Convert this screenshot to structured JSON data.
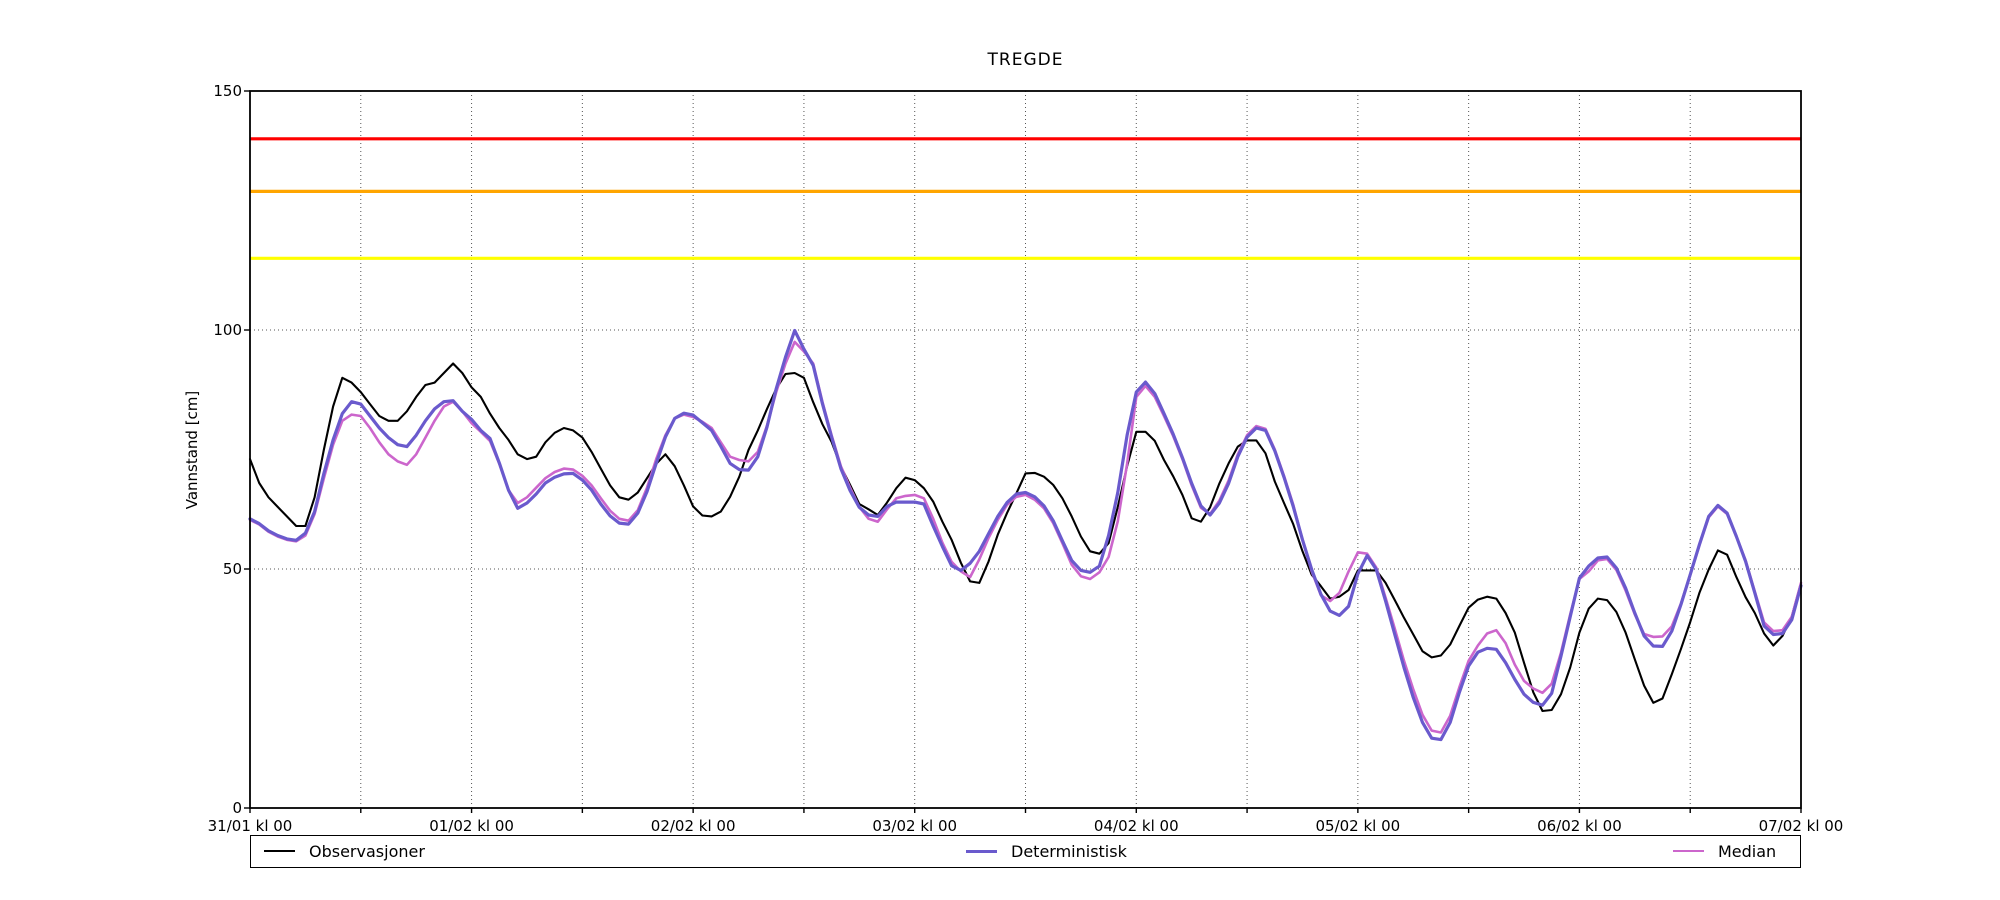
{
  "chart_data": {
    "type": "line",
    "title": "TREGDE",
    "ylabel": "Vannstand [cm]",
    "ylim": [
      0,
      150
    ],
    "yticks": [
      0,
      50,
      100,
      150
    ],
    "x_tick_labels": [
      "31/01 kl 00",
      "01/02 kl 00",
      "02/02 kl 00",
      "03/02 kl 00",
      "04/02 kl 00",
      "05/02 kl 00",
      "06/02 kl 00",
      "07/02 kl 00"
    ],
    "x_tick_hours": [
      0,
      24,
      48,
      72,
      96,
      120,
      144,
      168
    ],
    "x_total_hours": 168,
    "minor_grid_step_hours": 12,
    "grid": "dotted",
    "sample_interval_hours": 1,
    "thresholds": [
      {
        "level": "red",
        "value": 140,
        "color": "#ff0000"
      },
      {
        "level": "orange",
        "value": 129,
        "color": "#ffa500"
      },
      {
        "level": "yellow",
        "value": 115,
        "color": "#ffff00"
      }
    ],
    "series": [
      {
        "name": "Observasjoner",
        "color": "#000000",
        "width": 2.1,
        "values": [
          73,
          68,
          65,
          63,
          61,
          59,
          59,
          65,
          75,
          84,
          90,
          89,
          87,
          84.5,
          82,
          81,
          81,
          83,
          86,
          88.5,
          89,
          91,
          93,
          91,
          88,
          86,
          82.5,
          79.5,
          77,
          74,
          73,
          73.5,
          76.5,
          78.5,
          79.5,
          79,
          77.5,
          74.5,
          71,
          67.5,
          65,
          64.5,
          66,
          69,
          72,
          74,
          71.5,
          67.5,
          63.1,
          61.2,
          61,
          62,
          65.1,
          69.3,
          74.9,
          79,
          83.5,
          87.7,
          90.8,
          91,
          90,
          84.9,
          80.3,
          76.6,
          71.4,
          67.6,
          63.6,
          62.5,
          61.3,
          63.9,
          66.9,
          69.1,
          68.6,
          66.9,
          64.1,
          59.9,
          56.1,
          51.3,
          47.4,
          47.1,
          51.6,
          57.2,
          61.7,
          65.8,
          70,
          70.1,
          69.3,
          67.6,
          64.8,
          61,
          56.8,
          53.7,
          53.2,
          55.4,
          63,
          71.5,
          78.7,
          78.7,
          76.8,
          72.8,
          69.4,
          65.5,
          60.6,
          59.9,
          62.9,
          67.9,
          72.1,
          75.6,
          76.9,
          76.9,
          74.2,
          68.3,
          63.8,
          59.4,
          53.7,
          48.8,
          46.4,
          43.8,
          44.2,
          45.6,
          49.7,
          49.7,
          49.7,
          47.1,
          43.5,
          39.8,
          36.3,
          32.8,
          31.5,
          31.9,
          34.2,
          38.1,
          41.9,
          43.6,
          44.2,
          43.8,
          40.8,
          36.7,
          30.4,
          24.2,
          20.3,
          20.5,
          23.8,
          29.4,
          36.7,
          41.7,
          43.8,
          43.5,
          41,
          36.7,
          31.1,
          25.6,
          22,
          22.9,
          28,
          33.3,
          38.9,
          45,
          49.9,
          53.9,
          53,
          48.3,
          44.1,
          40.8,
          36.5,
          34,
          36,
          40.1,
          47.1
        ]
      },
      {
        "name": "Deterministisk",
        "color": "#6a5acd",
        "width": 3.2,
        "values": [
          60.5,
          59.5,
          58,
          57,
          56.3,
          56,
          57.5,
          62,
          70,
          77,
          82.5,
          85,
          84.5,
          82,
          79.5,
          77.5,
          76,
          75.6,
          78,
          81,
          83.5,
          85,
          85.2,
          83,
          81.3,
          79,
          77.3,
          72.2,
          66.5,
          62.7,
          63.8,
          65.7,
          68,
          69.2,
          69.9,
          70,
          68.6,
          66.5,
          63.6,
          61.1,
          59.6,
          59.4,
          61.7,
          66.2,
          72.1,
          77.6,
          81.5,
          82.6,
          82.2,
          80.6,
          79,
          75.7,
          72.1,
          70.8,
          70.7,
          73.5,
          79.7,
          87.7,
          94.3,
          99.9,
          96,
          92.6,
          84.6,
          77.6,
          71,
          66.4,
          62.9,
          61.3,
          61,
          63.1,
          64,
          64,
          64,
          63.6,
          59,
          54.7,
          50.7,
          49.7,
          51.2,
          53.7,
          57.4,
          61,
          63.9,
          65.7,
          66,
          65.1,
          63.2,
          60.1,
          55.9,
          51.8,
          49.7,
          49.3,
          50.6,
          57,
          66,
          78,
          87,
          89.1,
          86.7,
          82.5,
          78.2,
          73.3,
          67.9,
          63.2,
          61.3,
          63.8,
          67.9,
          73.5,
          77.6,
          79.5,
          79,
          74.7,
          69.2,
          63.1,
          56.1,
          49.9,
          44.7,
          41.2,
          40.3,
          42.2,
          49,
          52.8,
          49.9,
          43.3,
          36.3,
          29.4,
          23.1,
          17.9,
          14.6,
          14.3,
          17.9,
          24.2,
          29.7,
          32.6,
          33.4,
          33.2,
          30.4,
          26.9,
          23.8,
          22.1,
          21.5,
          24,
          31.8,
          40,
          48.1,
          50.6,
          52.3,
          52.5,
          50.2,
          46,
          40.8,
          36,
          33.9,
          33.8,
          37,
          42.6,
          48.8,
          55.1,
          61,
          63.3,
          61.7,
          56.8,
          51.6,
          45,
          38.1,
          36.3,
          36.5,
          39.4,
          46.5
        ]
      },
      {
        "name": "Median",
        "color": "#cc66cc",
        "width": 2.6,
        "values": [
          60.3,
          59.3,
          57.8,
          56.8,
          56.1,
          55.8,
          57,
          61.5,
          69,
          76,
          81,
          82.3,
          82,
          79.5,
          76.5,
          74,
          72.5,
          71.8,
          74,
          77.5,
          81,
          84,
          85,
          83,
          80.5,
          78.7,
          76.8,
          72,
          66.5,
          63.8,
          65,
          67,
          69,
          70.3,
          71,
          70.8,
          69.5,
          67.5,
          64.8,
          62.2,
          60.5,
          60.1,
          62.3,
          67,
          73,
          78,
          81.5,
          82.3,
          81.8,
          80.8,
          79.5,
          76.5,
          73.5,
          72.8,
          72.5,
          74.5,
          80,
          87,
          93,
          97.5,
          95.5,
          93,
          85,
          78,
          71.5,
          67,
          63,
          60.5,
          59.9,
          62.5,
          64.8,
          65.3,
          65.5,
          64.8,
          60.5,
          55.5,
          51.5,
          49.5,
          48.3,
          52,
          56.5,
          60.3,
          63.4,
          65.1,
          65.5,
          64.5,
          62.7,
          59.6,
          55.4,
          50.9,
          48.5,
          47.9,
          49.3,
          52.5,
          60,
          72,
          86,
          88.3,
          86,
          82,
          77.8,
          73,
          67.5,
          62.8,
          61.5,
          64.3,
          68.5,
          74,
          78,
          79.9,
          79.3,
          75,
          69.5,
          63.5,
          56.1,
          49.5,
          44.5,
          43.3,
          45,
          49.5,
          53.5,
          53.2,
          50.3,
          44,
          37.5,
          30.8,
          24.8,
          19.5,
          16.2,
          15.8,
          19.3,
          25.3,
          30.8,
          34,
          36.5,
          37.2,
          34.5,
          30,
          26.6,
          25,
          24.1,
          26,
          32.5,
          40.5,
          47.9,
          49.5,
          51.8,
          52.1,
          49.8,
          45.5,
          40.5,
          36.4,
          35.8,
          35.9,
          38,
          42.8,
          48.8,
          55,
          60.8,
          63.1,
          61.5,
          56.8,
          51.8,
          45.3,
          38.8,
          37,
          37.2,
          40,
          47.1
        ]
      }
    ]
  },
  "legend": {
    "items": [
      {
        "label": "Observasjoner"
      },
      {
        "label": "Deterministisk"
      },
      {
        "label": "Median"
      }
    ]
  }
}
